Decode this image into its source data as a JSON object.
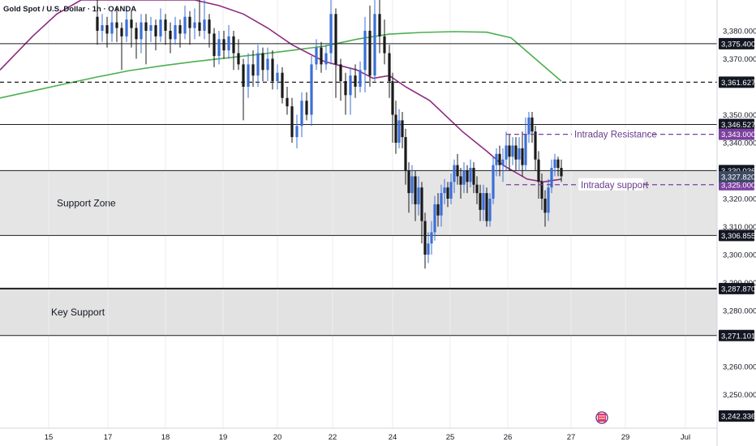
{
  "chart_data": {
    "type": "candlestick",
    "title": "Gold Spot / U.S. Dollar · 1h · OANDA",
    "y_axis": {
      "min": 3238,
      "max": 3391,
      "ticks": [
        3380,
        3370,
        3350,
        3340,
        3320,
        3310,
        3300,
        3290,
        3280,
        3260,
        3250
      ],
      "tick_labels": [
        "3,380.000",
        "3,370.000",
        "3,350.000",
        "3,340.000",
        "3,320.000",
        "3,310.000",
        "3,300.000",
        "3,290.000",
        "3,280.000",
        "3,260.000",
        "3,250.000"
      ]
    },
    "x_axis": {
      "labels": [
        "15",
        "17",
        "18",
        "19",
        "20",
        "22",
        "24",
        "25",
        "26",
        "27",
        "29",
        "Jul"
      ],
      "positions": [
        60,
        133,
        204,
        275,
        342,
        410,
        484,
        555,
        626,
        704,
        771,
        845
      ]
    },
    "horizontal_levels": [
      {
        "value": 3375.4,
        "label": "3,375.400",
        "style": "solid"
      },
      {
        "value": 3361.627,
        "label": "3,361.627",
        "style": "dashed"
      },
      {
        "value": 3346.527,
        "label": "3,346.527",
        "style": "solid"
      },
      {
        "value": 3330.036,
        "label": "3,330.036",
        "style": "solid"
      },
      {
        "value": 3306.855,
        "label": "3,306.855",
        "style": "solid"
      },
      {
        "value": 3287.87,
        "label": "3,287.870",
        "style": "solid-thick"
      },
      {
        "value": 3271.101,
        "label": "3,271.101",
        "style": "solid"
      },
      {
        "value": 3242.336,
        "label": "3,242.336",
        "style": "none"
      }
    ],
    "highlight_levels": [
      {
        "value": 3343.0,
        "label": "3,343.000",
        "color": "#7b3f9e",
        "annotation": "Intraday Resistance"
      },
      {
        "value": 3325.0,
        "label": "3,325.000",
        "color": "#7b3f9e",
        "annotation": "Intraday support"
      }
    ],
    "last_price": {
      "value": 3327.82,
      "label": "3,327.820",
      "color": "#3d4a63"
    },
    "zones": [
      {
        "name": "Support Zone",
        "top": 3330.036,
        "bottom": 3306.855
      },
      {
        "name": "Key Support",
        "top": 3287.87,
        "bottom": 3271.101
      }
    ],
    "moving_averages": [
      {
        "color": "#4caf50",
        "points": [
          [
            0,
            3356
          ],
          [
            40,
            3358.5
          ],
          [
            80,
            3361
          ],
          [
            120,
            3363.5
          ],
          [
            160,
            3365.8
          ],
          [
            200,
            3367.5
          ],
          [
            240,
            3369
          ],
          [
            280,
            3370.3
          ],
          [
            320,
            3371.6
          ],
          [
            360,
            3373
          ],
          [
            400,
            3374.5
          ],
          [
            440,
            3377
          ],
          [
            480,
            3378.8
          ],
          [
            520,
            3379.4
          ],
          [
            560,
            3379.7
          ],
          [
            600,
            3379.5
          ],
          [
            630,
            3377.5
          ],
          [
            660,
            3370
          ],
          [
            692,
            3362
          ]
        ]
      },
      {
        "color": "#8e2a82",
        "points": [
          [
            0,
            3366
          ],
          [
            40,
            3378
          ],
          [
            70,
            3386
          ],
          [
            100,
            3391
          ],
          [
            190,
            3391
          ],
          [
            240,
            3391
          ],
          [
            270,
            3389
          ],
          [
            300,
            3386
          ],
          [
            330,
            3381
          ],
          [
            360,
            3375
          ],
          [
            400,
            3369
          ],
          [
            440,
            3366
          ],
          [
            460,
            3363
          ],
          [
            480,
            3364
          ],
          [
            500,
            3360
          ],
          [
            530,
            3355
          ],
          [
            570,
            3344
          ],
          [
            600,
            3337
          ],
          [
            620,
            3332
          ],
          [
            650,
            3327
          ],
          [
            670,
            3326
          ],
          [
            692,
            3327
          ]
        ]
      }
    ],
    "candles": [
      [
        120,
        3385,
        3380,
        3375,
        3391
      ],
      [
        126,
        3380,
        3382,
        3376,
        3386
      ],
      [
        132,
        3382,
        3379,
        3374,
        3385
      ],
      [
        138,
        3379,
        3383,
        3376,
        3387
      ],
      [
        144,
        3383,
        3381,
        3376,
        3388
      ],
      [
        150,
        3381,
        3378,
        3366,
        3383
      ],
      [
        156,
        3378,
        3384,
        3376,
        3388
      ],
      [
        162,
        3384,
        3381,
        3374,
        3387
      ],
      [
        168,
        3381,
        3377,
        3370,
        3383
      ],
      [
        174,
        3377,
        3383,
        3372,
        3386
      ],
      [
        180,
        3383,
        3380,
        3368,
        3386
      ],
      [
        186,
        3380,
        3382,
        3376,
        3385
      ],
      [
        192,
        3382,
        3378,
        3373,
        3384
      ],
      [
        198,
        3378,
        3384,
        3376,
        3388
      ],
      [
        204,
        3384,
        3380,
        3375,
        3386
      ],
      [
        210,
        3380,
        3377,
        3372,
        3383
      ],
      [
        216,
        3377,
        3382,
        3375,
        3385
      ],
      [
        222,
        3382,
        3379,
        3374,
        3384
      ],
      [
        228,
        3379,
        3385,
        3377,
        3389
      ],
      [
        234,
        3385,
        3381,
        3375,
        3387
      ],
      [
        240,
        3381,
        3383,
        3377,
        3388
      ],
      [
        246,
        3383,
        3380,
        3378,
        3391
      ],
      [
        252,
        3380,
        3384,
        3377,
        3391
      ],
      [
        258,
        3384,
        3379,
        3374,
        3386
      ],
      [
        264,
        3379,
        3371,
        3367,
        3381
      ],
      [
        270,
        3371,
        3377,
        3368,
        3380
      ],
      [
        276,
        3377,
        3373,
        3370,
        3380
      ],
      [
        282,
        3373,
        3378,
        3370,
        3382
      ],
      [
        288,
        3378,
        3372,
        3366,
        3380
      ],
      [
        294,
        3372,
        3368,
        3366,
        3377
      ],
      [
        300,
        3368,
        3360,
        3348,
        3370
      ],
      [
        306,
        3360,
        3368,
        3356,
        3372
      ],
      [
        312,
        3368,
        3364,
        3360,
        3373
      ],
      [
        318,
        3364,
        3372,
        3360,
        3375
      ],
      [
        324,
        3372,
        3366,
        3362,
        3374
      ],
      [
        330,
        3366,
        3370,
        3362,
        3374
      ],
      [
        336,
        3370,
        3362,
        3359,
        3373
      ],
      [
        342,
        3362,
        3365,
        3359,
        3368
      ],
      [
        348,
        3365,
        3356,
        3354,
        3367
      ],
      [
        354,
        3356,
        3353,
        3350,
        3360
      ],
      [
        360,
        3353,
        3342,
        3340,
        3356
      ],
      [
        366,
        3342,
        3346,
        3338,
        3350
      ],
      [
        372,
        3346,
        3355,
        3342,
        3358
      ],
      [
        378,
        3355,
        3350,
        3348,
        3358
      ],
      [
        384,
        3350,
        3368,
        3346,
        3371
      ],
      [
        390,
        3368,
        3374,
        3366,
        3377
      ],
      [
        396,
        3374,
        3368,
        3365,
        3376
      ],
      [
        402,
        3368,
        3372,
        3366,
        3375
      ],
      [
        408,
        3372,
        3386,
        3368,
        3391
      ],
      [
        414,
        3386,
        3368,
        3356,
        3388
      ],
      [
        420,
        3368,
        3362,
        3355,
        3370
      ],
      [
        426,
        3362,
        3357,
        3350,
        3365
      ],
      [
        432,
        3357,
        3364,
        3350,
        3367
      ],
      [
        438,
        3364,
        3360,
        3356,
        3368
      ],
      [
        444,
        3360,
        3366,
        3358,
        3369
      ],
      [
        450,
        3366,
        3380,
        3358,
        3385
      ],
      [
        456,
        3380,
        3364,
        3360,
        3389
      ],
      [
        462,
        3364,
        3386,
        3362,
        3391
      ],
      [
        468,
        3386,
        3378,
        3372,
        3391
      ],
      [
        474,
        3378,
        3372,
        3368,
        3384
      ],
      [
        480,
        3372,
        3362,
        3356,
        3375
      ],
      [
        484,
        3362,
        3350,
        3340,
        3365
      ],
      [
        488,
        3350,
        3340,
        3336,
        3355
      ],
      [
        492,
        3340,
        3348,
        3338,
        3352
      ],
      [
        496,
        3348,
        3342,
        3338,
        3351
      ],
      [
        500,
        3342,
        3330,
        3325,
        3345
      ],
      [
        504,
        3330,
        3322,
        3315,
        3333
      ],
      [
        508,
        3322,
        3328,
        3318,
        3332
      ],
      [
        512,
        3328,
        3318,
        3312,
        3330
      ],
      [
        516,
        3318,
        3324,
        3314,
        3328
      ],
      [
        520,
        3324,
        3312,
        3304,
        3326
      ],
      [
        524,
        3312,
        3300,
        3295,
        3315
      ],
      [
        528,
        3300,
        3304,
        3297,
        3308
      ],
      [
        532,
        3304,
        3308,
        3300,
        3312
      ],
      [
        536,
        3308,
        3318,
        3305,
        3321
      ],
      [
        540,
        3318,
        3314,
        3310,
        3322
      ],
      [
        544,
        3314,
        3322,
        3310,
        3325
      ],
      [
        548,
        3322,
        3324,
        3318,
        3327
      ],
      [
        552,
        3324,
        3320,
        3317,
        3326
      ],
      [
        556,
        3320,
        3326,
        3318,
        3329
      ],
      [
        560,
        3326,
        3332,
        3322,
        3334
      ],
      [
        564,
        3332,
        3328,
        3325,
        3336
      ],
      [
        568,
        3328,
        3325,
        3320,
        3331
      ],
      [
        572,
        3325,
        3330,
        3322,
        3333
      ],
      [
        576,
        3330,
        3326,
        3322,
        3332
      ],
      [
        580,
        3326,
        3331,
        3324,
        3334
      ],
      [
        584,
        3331,
        3325,
        3322,
        3333
      ],
      [
        588,
        3325,
        3322,
        3318,
        3328
      ],
      [
        592,
        3322,
        3316,
        3312,
        3325
      ],
      [
        596,
        3316,
        3322,
        3312,
        3325
      ],
      [
        600,
        3322,
        3312,
        3310,
        3324
      ],
      [
        604,
        3312,
        3320,
        3310,
        3322
      ],
      [
        608,
        3320,
        3332,
        3318,
        3335
      ],
      [
        612,
        3332,
        3336,
        3328,
        3338
      ],
      [
        616,
        3336,
        3332,
        3328,
        3339
      ],
      [
        620,
        3332,
        3334,
        3326,
        3338
      ],
      [
        624,
        3334,
        3339,
        3330,
        3344
      ],
      [
        628,
        3339,
        3335,
        3330,
        3343
      ],
      [
        632,
        3335,
        3339,
        3332,
        3342
      ],
      [
        636,
        3339,
        3334,
        3330,
        3342
      ],
      [
        640,
        3334,
        3338,
        3330,
        3342
      ],
      [
        644,
        3338,
        3332,
        3328,
        3344
      ],
      [
        648,
        3332,
        3343,
        3330,
        3349
      ],
      [
        652,
        3343,
        3349,
        3340,
        3351
      ],
      [
        656,
        3349,
        3344,
        3340,
        3351
      ],
      [
        660,
        3344,
        3334,
        3330,
        3346
      ],
      [
        664,
        3334,
        3326,
        3320,
        3337
      ],
      [
        668,
        3326,
        3320,
        3316,
        3329
      ],
      [
        672,
        3320,
        3315,
        3310,
        3323
      ],
      [
        676,
        3315,
        3324,
        3312,
        3327
      ],
      [
        680,
        3324,
        3331,
        3322,
        3334
      ],
      [
        684,
        3331,
        3334,
        3328,
        3336
      ],
      [
        688,
        3334,
        3331,
        3328,
        3335
      ],
      [
        692,
        3331,
        3328,
        3326,
        3334
      ]
    ]
  },
  "ui": {
    "event_icon": "calendar-event-icon"
  }
}
